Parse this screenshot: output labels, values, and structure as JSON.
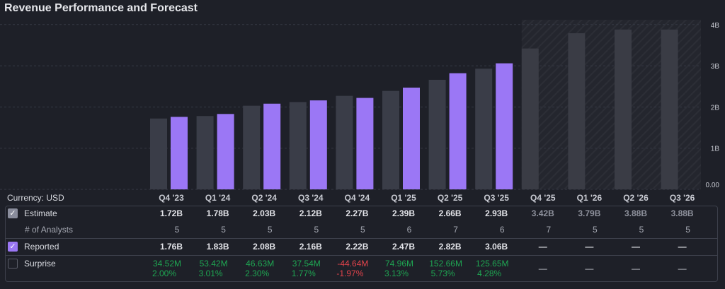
{
  "title": "Revenue Performance and Forecast",
  "currency_label": "Currency: USD",
  "rows": {
    "estimate": "Estimate",
    "analysts": "# of Analysts",
    "reported": "Reported",
    "surprise": "Surprise"
  },
  "checkboxes": {
    "estimate": true,
    "reported": true,
    "surprise": false
  },
  "colors": {
    "estimate": "#3a3d48",
    "reported": "#9b77f5",
    "forecast": "#3a3c45",
    "positive": "#1fa552",
    "negative": "#e0434b"
  },
  "chart_data": {
    "type": "bar",
    "title": "Revenue Performance and Forecast",
    "categories": [
      "Q4 '23",
      "Q1 '24",
      "Q2 '24",
      "Q3 '24",
      "Q4 '24",
      "Q1 '25",
      "Q2 '25",
      "Q3 '25",
      "Q4 '25",
      "Q1 '26",
      "Q2 '26",
      "Q3 '26"
    ],
    "y_ticks": [
      "0.00",
      "1B",
      "2B",
      "3B",
      "4B"
    ],
    "ylim": [
      0,
      4
    ],
    "yunit": "B",
    "grid": true,
    "forecast_start_index": 8,
    "series": [
      {
        "name": "Estimate",
        "values": [
          1.72,
          1.78,
          2.03,
          2.12,
          2.27,
          2.39,
          2.66,
          2.93,
          3.42,
          3.79,
          3.88,
          3.88
        ]
      },
      {
        "name": "Reported",
        "values": [
          1.76,
          1.83,
          2.08,
          2.16,
          2.22,
          2.47,
          2.82,
          3.06,
          null,
          null,
          null,
          null
        ]
      }
    ]
  },
  "table": {
    "estimate": [
      "1.72B",
      "1.78B",
      "2.03B",
      "2.12B",
      "2.27B",
      "2.39B",
      "2.66B",
      "2.93B",
      "3.42B",
      "3.79B",
      "3.88B",
      "3.88B"
    ],
    "analysts": [
      "5",
      "5",
      "5",
      "5",
      "5",
      "6",
      "7",
      "6",
      "7",
      "5",
      "5",
      "5"
    ],
    "reported": [
      "1.76B",
      "1.83B",
      "2.08B",
      "2.16B",
      "2.22B",
      "2.47B",
      "2.82B",
      "3.06B",
      "—",
      "—",
      "—",
      "—"
    ],
    "surprise_abs": [
      "34.52M",
      "53.42M",
      "46.63M",
      "37.54M",
      "-44.64M",
      "74.96M",
      "152.66M",
      "125.65M",
      "—",
      "—",
      "—",
      "—"
    ],
    "surprise_pct": [
      "2.00%",
      "3.01%",
      "2.30%",
      "1.77%",
      "-1.97%",
      "3.13%",
      "5.73%",
      "4.28%",
      "",
      "",
      "",
      ""
    ]
  }
}
